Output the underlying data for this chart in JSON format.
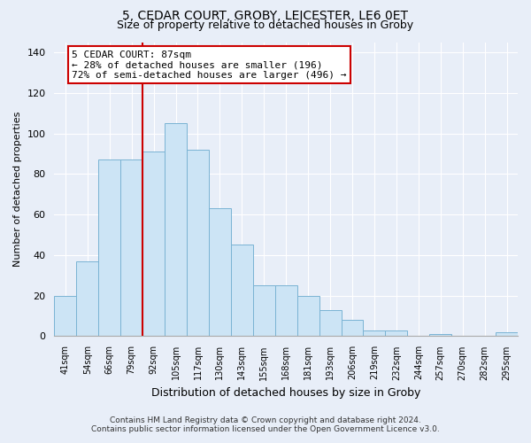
{
  "title1": "5, CEDAR COURT, GROBY, LEICESTER, LE6 0ET",
  "title2": "Size of property relative to detached houses in Groby",
  "xlabel": "Distribution of detached houses by size in Groby",
  "ylabel": "Number of detached properties",
  "categories": [
    "41sqm",
    "54sqm",
    "66sqm",
    "79sqm",
    "92sqm",
    "105sqm",
    "117sqm",
    "130sqm",
    "143sqm",
    "155sqm",
    "168sqm",
    "181sqm",
    "193sqm",
    "206sqm",
    "219sqm",
    "232sqm",
    "244sqm",
    "257sqm",
    "270sqm",
    "282sqm",
    "295sqm"
  ],
  "values": [
    20,
    37,
    87,
    87,
    91,
    105,
    92,
    63,
    45,
    25,
    25,
    20,
    13,
    8,
    3,
    3,
    0,
    1,
    0,
    0,
    2
  ],
  "bar_color": "#cce4f5",
  "bar_edge_color": "#7ab3d3",
  "vline_x_index": 4,
  "vline_color": "#cc0000",
  "annotation_title": "5 CEDAR COURT: 87sqm",
  "annotation_line1": "← 28% of detached houses are smaller (196)",
  "annotation_line2": "72% of semi-detached houses are larger (496) →",
  "annotation_box_color": "white",
  "annotation_box_edge_color": "#cc0000",
  "ylim": [
    0,
    145
  ],
  "yticks": [
    0,
    20,
    40,
    60,
    80,
    100,
    120,
    140
  ],
  "footnote1": "Contains HM Land Registry data © Crown copyright and database right 2024.",
  "footnote2": "Contains public sector information licensed under the Open Government Licence v3.0.",
  "background_color": "#e8eef8",
  "grid_color": "#ffffff"
}
